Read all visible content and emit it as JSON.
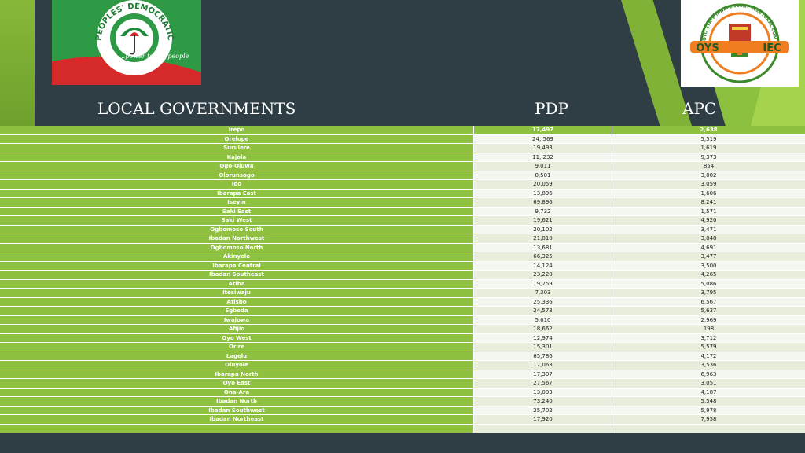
{
  "header": {
    "local_governments": "LOCAL GOVERNMENTS",
    "pdp": "PDP",
    "apc": "APC"
  },
  "logos": {
    "pdp": {
      "name": "PEOPLES' DEMOCRATIC PARTY",
      "slogan": "...power to the people",
      "colors": {
        "green": "#1f8a3b",
        "red": "#d62a2a",
        "white": "#ffffff"
      }
    },
    "oysiec": {
      "name": "OYO STATE INDEPENDENT ELECTORAL COMMISSION",
      "left": "OYS",
      "right": "IEC",
      "colors": {
        "orange": "#f07d1f",
        "green": "#3a8a2a",
        "red": "#c23a2a"
      }
    }
  },
  "colors": {
    "background": "#2f3d44",
    "accent_green": "#8dc13f",
    "cell_light": "#e7efdc"
  },
  "table": {
    "rows": [
      {
        "lg": "Irepo",
        "pdp": "17,497",
        "apc": "2,638"
      },
      {
        "lg": "Orelope",
        "pdp": "24, 569",
        "apc": "5,519"
      },
      {
        "lg": "Surulere",
        "pdp": "19,493",
        "apc": "1,619"
      },
      {
        "lg": "Kajola",
        "pdp": "11, 232",
        "apc": "9,373"
      },
      {
        "lg": "Ogo-Oluwa",
        "pdp": "9,011",
        "apc": "854"
      },
      {
        "lg": "Olorunsogo",
        "pdp": "8,501",
        "apc": "3,002"
      },
      {
        "lg": "Ido",
        "pdp": "20,059",
        "apc": "3,059"
      },
      {
        "lg": "Ibarapa East",
        "pdp": "13,896",
        "apc": "1,606"
      },
      {
        "lg": "Iseyin",
        "pdp": "69,896",
        "apc": "8,241"
      },
      {
        "lg": "Saki East",
        "pdp": "9,732",
        "apc": "1,571"
      },
      {
        "lg": "Saki West",
        "pdp": "19,621",
        "apc": "4,920"
      },
      {
        "lg": "Ogbomoso South",
        "pdp": "20,102",
        "apc": "3,471"
      },
      {
        "lg": "Ibadan Northwest",
        "pdp": "21,810",
        "apc": "3,848"
      },
      {
        "lg": "Ogbomoso North",
        "pdp": "13,681",
        "apc": "4,691"
      },
      {
        "lg": "Akinyele",
        "pdp": "66,325",
        "apc": "3,477"
      },
      {
        "lg": "Ibarapa Central",
        "pdp": "14,124",
        "apc": "3,500"
      },
      {
        "lg": "Ibadan Southeast",
        "pdp": "23,220",
        "apc": "4,265"
      },
      {
        "lg": "Atiba",
        "pdp": "19,259",
        "apc": "5,086"
      },
      {
        "lg": "Itesiwaju",
        "pdp": "7,303",
        "apc": "3,795"
      },
      {
        "lg": "Atisbo",
        "pdp": "25,336",
        "apc": "6,567"
      },
      {
        "lg": "Egbeda",
        "pdp": "24,573",
        "apc": "5,637"
      },
      {
        "lg": "Iwajowa",
        "pdp": "5,610",
        "apc": "2,969"
      },
      {
        "lg": "Afijio",
        "pdp": "18,662",
        "apc": "198"
      },
      {
        "lg": "Oyo West",
        "pdp": "12,974",
        "apc": "3,712"
      },
      {
        "lg": "Orire",
        "pdp": "15,301",
        "apc": "5,579"
      },
      {
        "lg": "Lagelu",
        "pdp": "65,786",
        "apc": "4,172"
      },
      {
        "lg": "Oluyole",
        "pdp": "17,063",
        "apc": "3,536"
      },
      {
        "lg": "Ibarapa North",
        "pdp": "17,307",
        "apc": "6,963"
      },
      {
        "lg": "Oyo East",
        "pdp": "27,567",
        "apc": "3,051"
      },
      {
        "lg": "Ona-Ara",
        "pdp": "13,093",
        "apc": "4,187"
      },
      {
        "lg": "Ibadan North",
        "pdp": "73,240",
        "apc": "5,548"
      },
      {
        "lg": "Ibadan Southwest",
        "pdp": "25,702",
        "apc": "5,978"
      },
      {
        "lg": "Ibadan Northeast",
        "pdp": "17,920",
        "apc": "7,958"
      },
      {
        "lg": "",
        "pdp": "",
        "apc": ""
      }
    ]
  }
}
